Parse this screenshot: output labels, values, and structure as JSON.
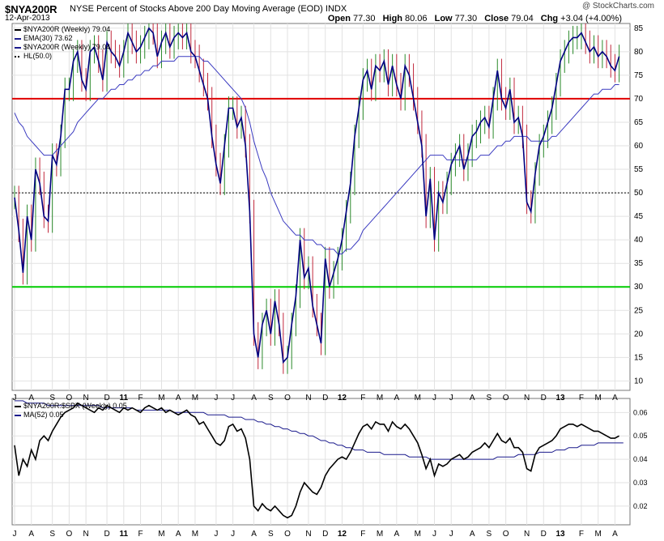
{
  "header": {
    "symbol": "$NYA200R",
    "description": "NYSE Percent of Stocks Above 200 Day Moving Average (EOD)",
    "exchange": "INDX",
    "date": "12-Apr-2013",
    "watermark": "@ StockCharts.com",
    "open_label": "Open",
    "open": "77.30",
    "high_label": "High",
    "high": "80.06",
    "low_label": "Low",
    "low": "77.30",
    "close_label": "Close",
    "close": "79.04",
    "chg_label": "Chg",
    "chg": "+3.04 (+4.00%)"
  },
  "legend": {
    "main": [
      {
        "text": "$NYA200R (Weekly) 79.04",
        "color": "#000000"
      },
      {
        "text": "EMA(30) 73.62",
        "color": "#1a1a8c"
      },
      {
        "text": "$NYA200R (Weekly) 79.04",
        "color": "#1a1a8c"
      },
      {
        "text": "HL(50.0)",
        "color": "#000000"
      }
    ],
    "lower": [
      {
        "text": "$NYA200R:$SPX (Weekly) 0.05",
        "color": "#000000"
      },
      {
        "text": "MA(52) 0.05",
        "color": "#1a1a8c"
      }
    ]
  },
  "chart_data": [
    {
      "type": "line",
      "panel": "main",
      "ylim": [
        8,
        86
      ],
      "yticks": [
        10,
        15,
        20,
        25,
        30,
        35,
        40,
        45,
        50,
        55,
        60,
        65,
        70,
        75,
        80,
        85
      ],
      "x_weeks": 146,
      "x_tick_labels": [
        "J",
        "A",
        "S",
        "O",
        "N",
        "D",
        "11",
        "F",
        "M",
        "A",
        "M",
        "J",
        "J",
        "A",
        "S",
        "O",
        "N",
        "D",
        "12",
        "F",
        "M",
        "A",
        "M",
        "J",
        "J",
        "A",
        "S",
        "O",
        "N",
        "D",
        "13",
        "F",
        "M",
        "A",
        "M"
      ],
      "x_tick_weeks": [
        0,
        4,
        9,
        13,
        17,
        22,
        26,
        30,
        35,
        39,
        43,
        48,
        52,
        57,
        61,
        65,
        70,
        74,
        78,
        83,
        87,
        91,
        96,
        100,
        104,
        109,
        113,
        117,
        122,
        126,
        130,
        135,
        139,
        143,
        147
      ],
      "bold_tick_labels": [
        "11",
        "12",
        "13"
      ],
      "horizontal_lines": [
        {
          "value": 70,
          "color": "#e00000"
        },
        {
          "value": 30,
          "color": "#00cc00"
        },
        {
          "value": 50,
          "color": "#000000",
          "style": "dotted"
        }
      ],
      "series": [
        {
          "name": "$NYA200R (Weekly)",
          "color": "#000080",
          "values": [
            49,
            42,
            33,
            45,
            40,
            55,
            52,
            45,
            44,
            58,
            56,
            62,
            72,
            72,
            78,
            80,
            74,
            72,
            80,
            81,
            78,
            74,
            82,
            80,
            79,
            77,
            80,
            84,
            82,
            80,
            81,
            83,
            85,
            84,
            79,
            82,
            84,
            81,
            83,
            84,
            83,
            84,
            80,
            79,
            76,
            73,
            70,
            62,
            56,
            52,
            60,
            68,
            68,
            64,
            66,
            60,
            46,
            20,
            15,
            22,
            25,
            20,
            27,
            22,
            14,
            15,
            22,
            28,
            40,
            32,
            34,
            26,
            22,
            18,
            36,
            30,
            33,
            36,
            40,
            46,
            52,
            62,
            68,
            74,
            76,
            72,
            77,
            76,
            78,
            73,
            77,
            73,
            70,
            77,
            75,
            70,
            65,
            60,
            45,
            53,
            40,
            50,
            48,
            52,
            56,
            58,
            60,
            55,
            58,
            62,
            63,
            65,
            66,
            64,
            70,
            76,
            70,
            68,
            72,
            65,
            66,
            62,
            48,
            46,
            54,
            60,
            62,
            65,
            68,
            73,
            78,
            80,
            82,
            83,
            83,
            84,
            82,
            80,
            81,
            79,
            80,
            79,
            77,
            76,
            79
          ]
        },
        {
          "name": "EMA(30)",
          "color": "#3a3ac0",
          "values": [
            67,
            65,
            64,
            62,
            61,
            60,
            59,
            58,
            58,
            58,
            59,
            60,
            61,
            62,
            63,
            65,
            66,
            67,
            68,
            69,
            70,
            70,
            71,
            72,
            72,
            73,
            73,
            74,
            74,
            75,
            75,
            76,
            76,
            77,
            77,
            78,
            78,
            78,
            78,
            79,
            79,
            79,
            79,
            79,
            79,
            78,
            78,
            77,
            76,
            75,
            74,
            73,
            72,
            71,
            70,
            68,
            65,
            61,
            58,
            55,
            53,
            50,
            48,
            46,
            44,
            43,
            42,
            41,
            41,
            40,
            40,
            40,
            39,
            39,
            38,
            38,
            38,
            37,
            37,
            38,
            38,
            39,
            40,
            42,
            43,
            44,
            45,
            46,
            47,
            48,
            49,
            50,
            51,
            52,
            53,
            54,
            55,
            56,
            57,
            58,
            58,
            58,
            58,
            57,
            57,
            57,
            57,
            57,
            57,
            57,
            57,
            58,
            58,
            58,
            59,
            60,
            60,
            61,
            61,
            62,
            62,
            62,
            62,
            61,
            61,
            61,
            61,
            61,
            62,
            62,
            63,
            64,
            65,
            66,
            67,
            68,
            69,
            70,
            71,
            71,
            72,
            72,
            72,
            73,
            73
          ]
        },
        {
          "name": "HL(50.0)",
          "color": "#000000",
          "values": [
            50
          ]
        }
      ]
    },
    {
      "type": "line",
      "panel": "lower",
      "ylim": [
        0.012,
        0.066
      ],
      "yticks": [
        0.02,
        0.03,
        0.04,
        0.05,
        0.06
      ],
      "ytick_labels": [
        "0.02",
        "0.03",
        "0.04",
        "0.05",
        "0.06"
      ],
      "series": [
        {
          "name": "$NYA200R:$SPX (Weekly)",
          "color": "#000000",
          "values": [
            0.046,
            0.033,
            0.04,
            0.037,
            0.044,
            0.04,
            0.048,
            0.05,
            0.048,
            0.052,
            0.055,
            0.058,
            0.06,
            0.061,
            0.062,
            0.064,
            0.063,
            0.062,
            0.061,
            0.06,
            0.062,
            0.061,
            0.063,
            0.062,
            0.061,
            0.06,
            0.062,
            0.061,
            0.062,
            0.061,
            0.06,
            0.062,
            0.063,
            0.062,
            0.061,
            0.062,
            0.06,
            0.061,
            0.06,
            0.059,
            0.06,
            0.061,
            0.059,
            0.058,
            0.055,
            0.056,
            0.053,
            0.05,
            0.047,
            0.046,
            0.048,
            0.054,
            0.055,
            0.052,
            0.053,
            0.049,
            0.04,
            0.02,
            0.018,
            0.021,
            0.019,
            0.018,
            0.02,
            0.018,
            0.016,
            0.015,
            0.016,
            0.02,
            0.026,
            0.03,
            0.028,
            0.026,
            0.025,
            0.028,
            0.033,
            0.036,
            0.038,
            0.04,
            0.041,
            0.04,
            0.043,
            0.047,
            0.051,
            0.054,
            0.055,
            0.053,
            0.056,
            0.055,
            0.055,
            0.052,
            0.056,
            0.054,
            0.053,
            0.055,
            0.053,
            0.05,
            0.047,
            0.042,
            0.036,
            0.04,
            0.033,
            0.038,
            0.037,
            0.038,
            0.04,
            0.041,
            0.042,
            0.04,
            0.041,
            0.043,
            0.044,
            0.045,
            0.047,
            0.045,
            0.048,
            0.051,
            0.048,
            0.047,
            0.049,
            0.045,
            0.045,
            0.043,
            0.036,
            0.035,
            0.042,
            0.045,
            0.046,
            0.047,
            0.048,
            0.05,
            0.053,
            0.054,
            0.055,
            0.055,
            0.054,
            0.055,
            0.054,
            0.053,
            0.052,
            0.052,
            0.051,
            0.05,
            0.049,
            0.049,
            0.05
          ]
        },
        {
          "name": "MA(52)",
          "color": "#1a1a8c",
          "values": [
            0.065,
            0.065,
            0.065,
            0.064,
            0.064,
            0.064,
            0.064,
            0.064,
            0.063,
            0.063,
            0.063,
            0.063,
            0.063,
            0.063,
            0.063,
            0.063,
            0.063,
            0.063,
            0.063,
            0.063,
            0.063,
            0.062,
            0.062,
            0.062,
            0.062,
            0.062,
            0.062,
            0.062,
            0.062,
            0.061,
            0.061,
            0.061,
            0.061,
            0.061,
            0.061,
            0.061,
            0.061,
            0.061,
            0.06,
            0.06,
            0.06,
            0.06,
            0.06,
            0.06,
            0.06,
            0.06,
            0.059,
            0.059,
            0.059,
            0.059,
            0.059,
            0.058,
            0.058,
            0.058,
            0.058,
            0.057,
            0.057,
            0.057,
            0.056,
            0.056,
            0.055,
            0.055,
            0.054,
            0.054,
            0.053,
            0.053,
            0.052,
            0.052,
            0.051,
            0.051,
            0.05,
            0.05,
            0.049,
            0.048,
            0.048,
            0.047,
            0.047,
            0.046,
            0.046,
            0.045,
            0.045,
            0.044,
            0.044,
            0.044,
            0.043,
            0.043,
            0.043,
            0.043,
            0.042,
            0.042,
            0.042,
            0.042,
            0.042,
            0.042,
            0.041,
            0.041,
            0.041,
            0.041,
            0.041,
            0.04,
            0.04,
            0.04,
            0.04,
            0.04,
            0.04,
            0.04,
            0.04,
            0.04,
            0.04,
            0.04,
            0.04,
            0.04,
            0.04,
            0.04,
            0.04,
            0.041,
            0.041,
            0.041,
            0.041,
            0.041,
            0.042,
            0.042,
            0.042,
            0.042,
            0.042,
            0.043,
            0.043,
            0.043,
            0.043,
            0.044,
            0.044,
            0.044,
            0.045,
            0.045,
            0.045,
            0.046,
            0.046,
            0.046,
            0.046,
            0.047,
            0.047,
            0.047,
            0.047,
            0.047,
            0.047,
            0.047
          ]
        }
      ]
    }
  ]
}
